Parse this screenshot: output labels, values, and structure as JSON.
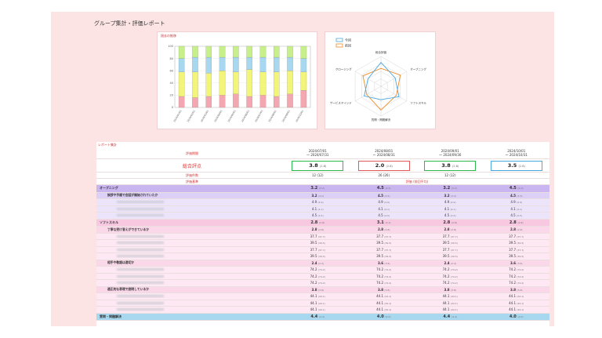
{
  "page": {
    "title": "グループ集計・評価レポート"
  },
  "bar_chart": {
    "caption": "過去の推移",
    "y_ticks": [
      "0",
      "20",
      "40",
      "60",
      "80",
      "100"
    ],
    "x_labels": [
      "2024/01/01",
      "2024/02/01",
      "2024/03/01",
      "2024/04/01",
      "2024/05/01",
      "2024/06/01",
      "2024/07/01",
      "2024/08/01",
      "2024/09/01",
      "2024/10/01"
    ],
    "colors": {
      "pink": "#f4a7b0",
      "yellow": "#f3f57a",
      "blue": "#a8d8f0",
      "green": "#c8f08a"
    },
    "stacks": [
      [
        18,
        40,
        22,
        20
      ],
      [
        16,
        42,
        24,
        18
      ],
      [
        18,
        38,
        26,
        18
      ],
      [
        20,
        40,
        22,
        18
      ],
      [
        22,
        36,
        24,
        18
      ],
      [
        18,
        44,
        20,
        18
      ],
      [
        20,
        38,
        24,
        18
      ],
      [
        18,
        40,
        24,
        18
      ],
      [
        22,
        38,
        22,
        18
      ],
      [
        28,
        30,
        22,
        20
      ]
    ]
  },
  "radar_chart": {
    "legend": [
      "今回",
      "前回"
    ],
    "colors": {
      "current": "#4aa8e0",
      "previous": "#f08a24"
    },
    "axes": [
      "オープニング",
      "ソフトスキル",
      "質問・問題解決",
      "サービスマインド",
      "クロージング",
      "総合評価"
    ],
    "current": [
      0.55,
      0.7,
      0.45,
      0.65,
      0.5,
      0.8
    ],
    "previous": [
      0.75,
      0.6,
      0.8,
      0.55,
      0.7,
      0.6
    ]
  },
  "report": {
    "caption": "レポート集計",
    "period_label": "評価期間",
    "periods": [
      {
        "from": "2024/07/01",
        "to": "～ 2024/07/31"
      },
      {
        "from": "2024/08/01",
        "to": "～ 2024/08/31"
      },
      {
        "from": "2024/09/01",
        "to": "～ 2024/09/30"
      },
      {
        "from": "2024/10/01",
        "to": "～ 2024/10/31"
      }
    ],
    "overall_label": "総合評点",
    "overall": [
      {
        "value": "3.8",
        "prev": "(2.8)",
        "color": "#2db84a"
      },
      {
        "value": "2.0",
        "prev": "(2.8)",
        "color": "#e05a5a"
      },
      {
        "value": "3.8",
        "prev": "(2.8)",
        "color": "#2db84a"
      },
      {
        "value": "3.5",
        "prev": "(2.8)",
        "color": "#4aa8e0"
      }
    ],
    "count_label": "評価件数",
    "counts": [
      "12 (12)",
      "26 (26)",
      "12 (12)",
      ""
    ],
    "criteria_label": "評価基準",
    "criteria_value": "評価 (前回平均)",
    "rows": [
      {
        "type": "cat",
        "label": "オープニング",
        "bg": "#c9b5f0",
        "vals": [
          "3.2",
          "4.5",
          "3.2",
          "4.5"
        ],
        "prev": [
          "(3.2)",
          "(4.5)",
          "(3.2)",
          "(4.2)"
        ]
      },
      {
        "type": "sub",
        "label": "挨拶や手順で会話が開始されていたか",
        "bg": "#ddd0f7",
        "vals": [
          "3.2",
          "4.5",
          "3.2",
          "4.5"
        ],
        "prev": [
          "(3.2)",
          "(4.5)",
          "(3.2)",
          "(4.5)"
        ]
      },
      {
        "type": "item",
        "label": "",
        "bg": "#ece4fb",
        "vals": [
          "4.9",
          "4.9",
          "4.9",
          "4.9"
        ],
        "prev": [
          "(4.9)",
          "(4.9)",
          "(4.9)",
          "(4.9)"
        ]
      },
      {
        "type": "item",
        "label": "",
        "bg": "#ece4fb",
        "vals": [
          "4.1",
          "4.1",
          "4.1",
          "4.1"
        ],
        "prev": [
          "(4.1)",
          "(4.1)",
          "(4.1)",
          "(4.1)"
        ]
      },
      {
        "type": "item",
        "label": "",
        "bg": "#ece4fb",
        "vals": [
          "4.5",
          "4.5",
          "4.5",
          "4.5"
        ],
        "prev": [
          "(4.5)",
          "(4.5)",
          "(4.5)",
          "(4.5)"
        ]
      },
      {
        "type": "cat",
        "label": "ソフトスキル",
        "bg": "#f7c8e0",
        "vals": [
          "2.8",
          "3.1",
          "2.8",
          "2.8"
        ],
        "prev": [
          "(2.8)",
          "(3.1)",
          "(2.8)",
          "(2.8)"
        ]
      },
      {
        "type": "sub",
        "label": "丁寧な受け答えができているか",
        "bg": "#fad8ea",
        "vals": [
          "2.8",
          "2.8",
          "2.8",
          "2.8"
        ],
        "prev": [
          "(2.8)",
          "(2.8)",
          "(2.8)",
          "(2.8)"
        ]
      },
      {
        "type": "item",
        "label": "",
        "bg": "#fde8f3",
        "vals": [
          "37.7",
          "37.7",
          "37.7",
          "37.7"
        ],
        "prev": [
          "(37.7)",
          "(37.7)",
          "(37.7)",
          "(37.7)"
        ]
      },
      {
        "type": "item",
        "label": "",
        "bg": "#fde8f3",
        "vals": [
          "39.5",
          "39.5",
          "39.5",
          "39.5"
        ],
        "prev": [
          "(39.5)",
          "(39.5)",
          "(39.5)",
          "(39.5)"
        ]
      },
      {
        "type": "item",
        "label": "",
        "bg": "#fde8f3",
        "vals": [
          "37.7",
          "37.7",
          "37.7",
          "37.7"
        ],
        "prev": [
          "(37.7)",
          "(37.7)",
          "(37.7)",
          "(37.7)"
        ]
      },
      {
        "type": "item",
        "label": "",
        "bg": "#fde8f3",
        "vals": [
          "39.5",
          "39.5",
          "39.5",
          "39.5"
        ],
        "prev": [
          "(39.5)",
          "(39.5)",
          "(39.5)",
          "(39.5)"
        ]
      },
      {
        "type": "sub",
        "label": "相手や敬語は適切か",
        "bg": "#fad8ea",
        "vals": [
          "2.4",
          "3.6",
          "2.4",
          "3.6"
        ],
        "prev": [
          "(2.4)",
          "(3.6)",
          "(2.4)",
          "(3.6)"
        ]
      },
      {
        "type": "item",
        "label": "",
        "bg": "#fde8f3",
        "vals": [
          "74.2",
          "74.2",
          "74.2",
          "74.2"
        ],
        "prev": [
          "(74.2)",
          "(74.2)",
          "(74.2)",
          "(74.2)"
        ]
      },
      {
        "type": "item",
        "label": "",
        "bg": "#fde8f3",
        "vals": [
          "74.2",
          "74.2",
          "74.2",
          "74.2"
        ],
        "prev": [
          "(74.2)",
          "(74.2)",
          "(74.2)",
          "(74.2)"
        ]
      },
      {
        "type": "item",
        "label": "",
        "bg": "#fde8f3",
        "vals": [
          "74.2",
          "74.2",
          "74.2",
          "74.2"
        ],
        "prev": [
          "(74.2)",
          "(74.2)",
          "(74.2)",
          "(74.2)"
        ]
      },
      {
        "type": "sub",
        "label": "適正的な表現で説明しているか",
        "bg": "#fad8ea",
        "vals": [
          "3.8",
          "3.8",
          "3.8",
          "3.8"
        ],
        "prev": [
          "(3.8)",
          "(3.8)",
          "(3.8)",
          "(3.8)"
        ]
      },
      {
        "type": "item",
        "label": "",
        "bg": "#fde8f3",
        "vals": [
          "44.1",
          "44.1",
          "44.1",
          "44.1"
        ],
        "prev": [
          "(44.1)",
          "(44.1)",
          "(44.1)",
          "(44.1)"
        ]
      },
      {
        "type": "item",
        "label": "",
        "bg": "#fde8f3",
        "vals": [
          "44.1",
          "44.1",
          "44.1",
          "44.1"
        ],
        "prev": [
          "(44.1)",
          "(44.1)",
          "(44.1)",
          "(44.1)"
        ]
      },
      {
        "type": "item",
        "label": "",
        "bg": "#fde8f3",
        "vals": [
          "44.1",
          "44.1",
          "44.1",
          "44.1"
        ],
        "prev": [
          "(44.1)",
          "(44.1)",
          "(44.1)",
          "(44.1)"
        ]
      },
      {
        "type": "cat",
        "label": "質問・問題解決",
        "bg": "#a8d8f0",
        "vals": [
          "4.4",
          "4.0",
          "4.4",
          "4.0"
        ],
        "prev": [
          "(4.4)",
          "(4.0)",
          "(4.4)",
          "(4.0)"
        ]
      }
    ]
  }
}
